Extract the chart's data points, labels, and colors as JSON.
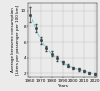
{
  "years": [
    1960,
    1965,
    1970,
    1975,
    1980,
    1985,
    1990,
    1995,
    2000,
    2005,
    2010,
    2015,
    2020
  ],
  "values": [
    9.5,
    7.8,
    6.2,
    5.2,
    4.5,
    3.9,
    3.4,
    3.0,
    2.7,
    2.5,
    2.3,
    2.1,
    1.9
  ],
  "errors": [
    0.9,
    0.5,
    0.4,
    0.35,
    0.3,
    0.28,
    0.22,
    0.2,
    0.18,
    0.15,
    0.15,
    0.12,
    0.1
  ],
  "xlim": [
    1958,
    2022
  ],
  "ylim": [
    1.5,
    11.0
  ],
  "yticks": [
    2,
    4,
    6,
    8,
    10
  ],
  "xticks": [
    1960,
    1970,
    1980,
    1990,
    2000,
    2010,
    2020
  ],
  "xlabel": "Years",
  "ylabel": "Average kerosene consumption\n[Liters per passenger per 100 km]",
  "line_color": "#66ccdd",
  "marker_color": "#444444",
  "error_color": "#444444",
  "grid_color": "#bbbbbb",
  "bg_color": "#ebebeb",
  "axis_fontsize": 3.0,
  "tick_fontsize": 3.0
}
